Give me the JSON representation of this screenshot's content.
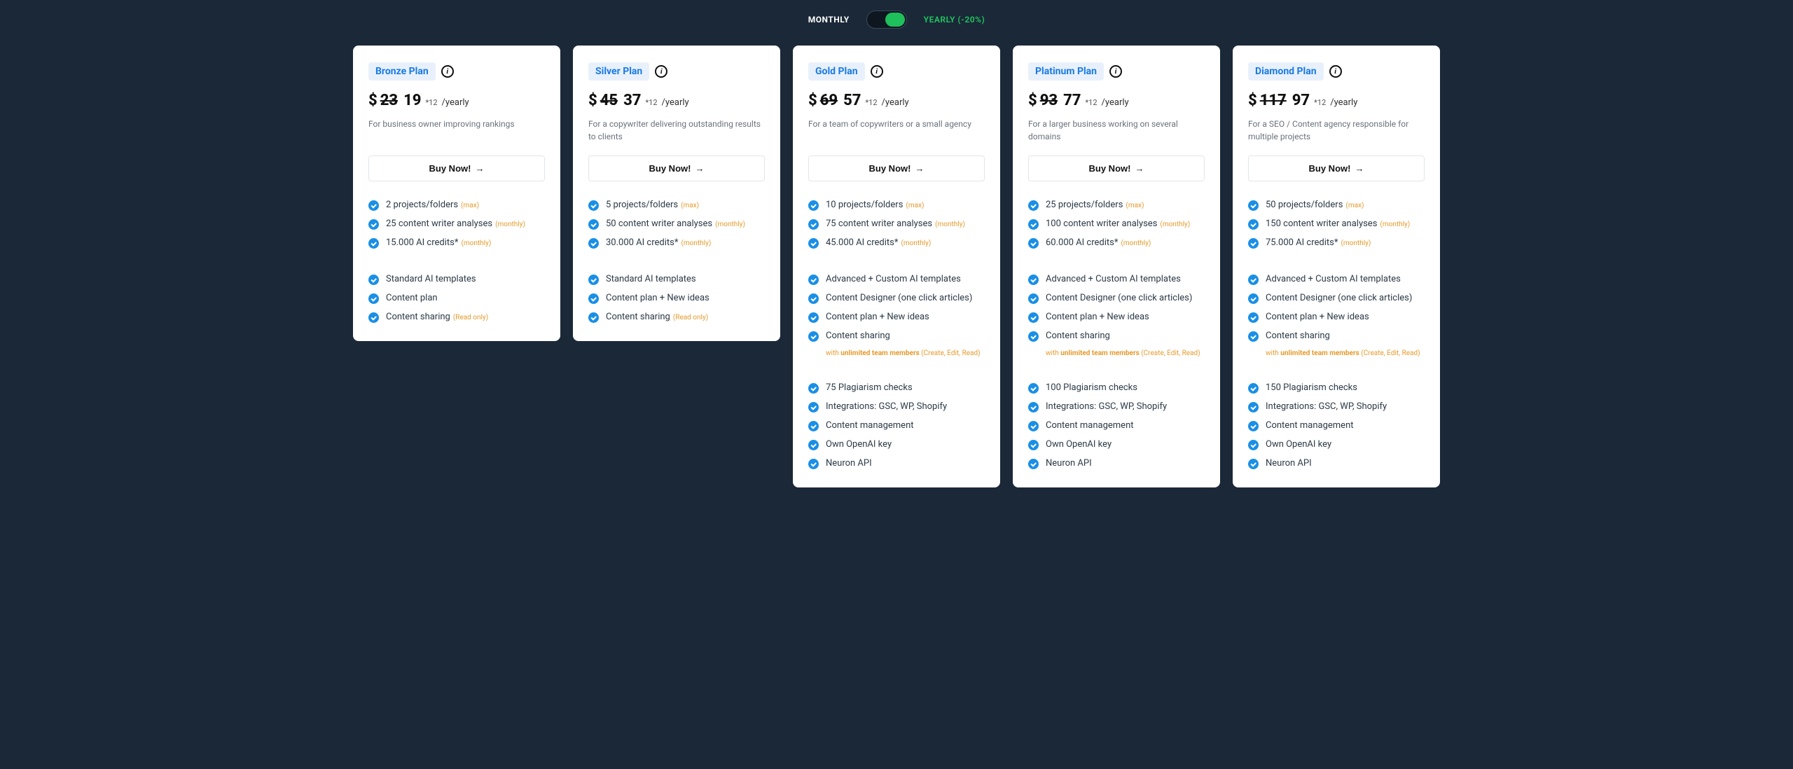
{
  "toggle": {
    "monthly": "MONTHLY",
    "yearly": "YEARLY (-20%)"
  },
  "common": {
    "buy_label": "Buy Now!",
    "currency": "$",
    "price_suffix": "*12",
    "price_period": "/yearly",
    "tag_max": "(max)",
    "tag_monthly": "(monthly)",
    "tag_readonly": "(Read only)",
    "share_note_prefix": "with ",
    "share_note_bold": "unlimited team members",
    "share_note_suffix": " (Create, Edit, Read)"
  },
  "plans": [
    {
      "name": "Bronze Plan",
      "price_old": "23",
      "price_new": "19",
      "desc": "For business owner improving rankings",
      "g1": [
        {
          "text": "2 projects/folders",
          "tag": "max"
        },
        {
          "text": "25 content writer analyses",
          "tag": "monthly"
        },
        {
          "text": "15.000 AI credits*",
          "tag": "monthly"
        }
      ],
      "g2": [
        {
          "text": "Standard AI templates"
        },
        {
          "text": "Content plan"
        },
        {
          "text": "Content sharing",
          "tag": "readonly"
        }
      ],
      "share_note": false,
      "g3": []
    },
    {
      "name": "Silver Plan",
      "price_old": "45",
      "price_new": "37",
      "desc": "For a copywriter delivering outstanding results to clients",
      "g1": [
        {
          "text": "5 projects/folders",
          "tag": "max"
        },
        {
          "text": "50 content writer analyses",
          "tag": "monthly"
        },
        {
          "text": "30.000 AI credits*",
          "tag": "monthly"
        }
      ],
      "g2": [
        {
          "text": "Standard AI templates"
        },
        {
          "text": "Content plan + New ideas"
        },
        {
          "text": "Content sharing",
          "tag": "readonly"
        }
      ],
      "share_note": false,
      "g3": []
    },
    {
      "name": "Gold Plan",
      "price_old": "69",
      "price_new": "57",
      "desc": "For a team of copywriters or a small agency",
      "g1": [
        {
          "text": "10 projects/folders",
          "tag": "max"
        },
        {
          "text": "75 content writer analyses",
          "tag": "monthly"
        },
        {
          "text": "45.000 AI credits*",
          "tag": "monthly"
        }
      ],
      "g2": [
        {
          "text": "Advanced + Custom AI templates"
        },
        {
          "text": "Content Designer (one click articles)"
        },
        {
          "text": "Content plan + New ideas"
        },
        {
          "text": "Content sharing"
        }
      ],
      "share_note": true,
      "g3": [
        {
          "text": "75 Plagiarism checks"
        },
        {
          "text": "Integrations: GSC, WP, Shopify"
        },
        {
          "text": "Content management"
        },
        {
          "text": "Own OpenAI key"
        },
        {
          "text": "Neuron API"
        }
      ]
    },
    {
      "name": "Platinum Plan",
      "price_old": "93",
      "price_new": "77",
      "desc": "For a larger business working on several domains",
      "g1": [
        {
          "text": "25 projects/folders",
          "tag": "max"
        },
        {
          "text": "100 content writer analyses",
          "tag": "monthly"
        },
        {
          "text": "60.000 AI credits*",
          "tag": "monthly"
        }
      ],
      "g2": [
        {
          "text": "Advanced + Custom AI templates"
        },
        {
          "text": "Content Designer (one click articles)"
        },
        {
          "text": "Content plan + New ideas"
        },
        {
          "text": "Content sharing"
        }
      ],
      "share_note": true,
      "g3": [
        {
          "text": "100 Plagiarism checks"
        },
        {
          "text": "Integrations: GSC, WP, Shopify"
        },
        {
          "text": "Content management"
        },
        {
          "text": "Own OpenAI key"
        },
        {
          "text": "Neuron API"
        }
      ]
    },
    {
      "name": "Diamond Plan",
      "price_old": "117",
      "price_new": "97",
      "desc": "For a SEO / Content agency responsible for multiple projects",
      "g1": [
        {
          "text": "50 projects/folders",
          "tag": "max"
        },
        {
          "text": "150 content writer analyses",
          "tag": "monthly"
        },
        {
          "text": "75.000 AI credits*",
          "tag": "monthly"
        }
      ],
      "g2": [
        {
          "text": "Advanced + Custom AI templates"
        },
        {
          "text": "Content Designer (one click articles)"
        },
        {
          "text": "Content plan + New ideas"
        },
        {
          "text": "Content sharing"
        }
      ],
      "share_note": true,
      "g3": [
        {
          "text": "150 Plagiarism checks"
        },
        {
          "text": "Integrations: GSC, WP, Shopify"
        },
        {
          "text": "Content management"
        },
        {
          "text": "Own OpenAI key"
        },
        {
          "text": "Neuron API"
        }
      ]
    }
  ]
}
